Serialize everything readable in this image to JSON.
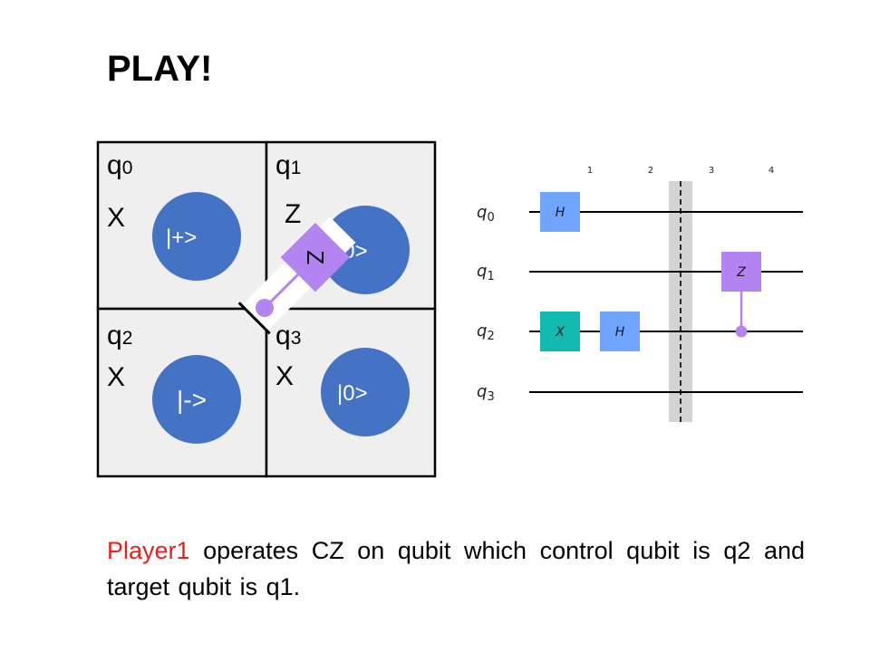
{
  "title": "PLAY!",
  "board": {
    "cells": [
      {
        "qubit": "q",
        "index": "0",
        "gate": "X",
        "state": "|+>"
      },
      {
        "qubit": "q",
        "index": "1",
        "gate": "Z",
        "state": "|0>"
      },
      {
        "qubit": "q",
        "index": "2",
        "gate": "X",
        "state": "|->"
      },
      {
        "qubit": "q",
        "index": "3",
        "gate": "X",
        "state": "|0>"
      }
    ],
    "placed_gate": "Z",
    "colors": {
      "cell_bg": "#efefef",
      "state_circle": "#4472c4",
      "cz_gate": "#b383f2"
    }
  },
  "circuit": {
    "steps": [
      "1",
      "2",
      "3",
      "4"
    ],
    "wires": [
      {
        "name": "q",
        "index": "0"
      },
      {
        "name": "q",
        "index": "1"
      },
      {
        "name": "q",
        "index": "2"
      },
      {
        "name": "q",
        "index": "3"
      }
    ],
    "gates": {
      "h_q0": "H",
      "x_q2": "X",
      "h_q2": "H",
      "z_q1": "Z"
    },
    "colors": {
      "h": "#6fa4ff",
      "x": "#12bab0",
      "cz": "#b383f2",
      "barrier": "#d3d3d3"
    }
  },
  "caption": {
    "player": "Player1",
    "text": " operates CZ on qubit which control qubit is q2 and target qubit is q1."
  }
}
